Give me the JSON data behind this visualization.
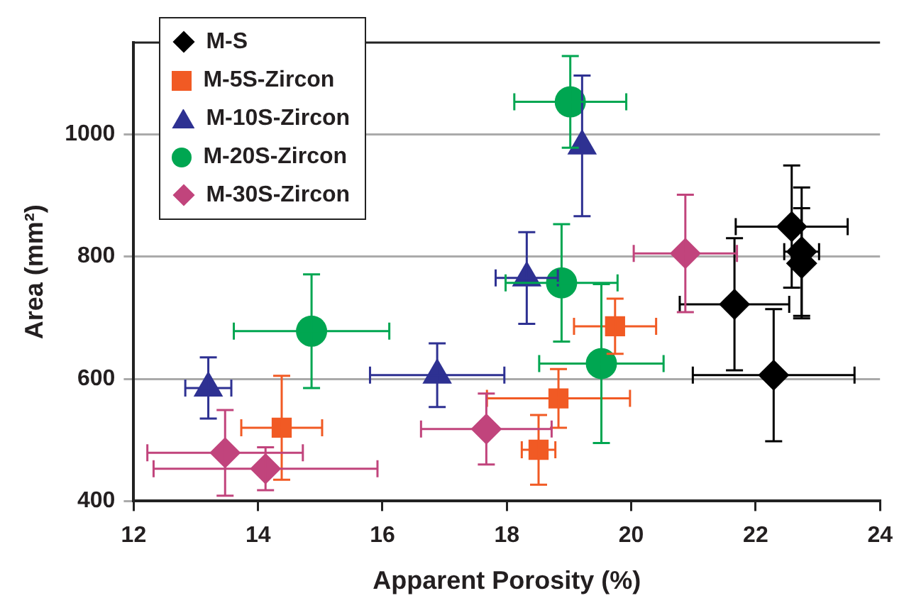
{
  "chart_data": {
    "type": "scatter",
    "xlabel": "Apparent Porosity (%)",
    "ylabel": "Area (mm²)",
    "xlim": [
      12,
      24
    ],
    "xticks": [
      12,
      14,
      16,
      18,
      20,
      22,
      24
    ],
    "ylim": [
      400,
      1150
    ],
    "yticks": [
      400,
      600,
      800,
      1000
    ],
    "grid": "y",
    "legend": "top left",
    "series": [
      {
        "name": "M-S",
        "color": "#000000",
        "marker": "diamond",
        "x": [
          22.58,
          22.74,
          22.74,
          21.66,
          22.29
        ],
        "values": [
          849,
          808,
          789,
          722,
          606
        ],
        "errors": [
          100,
          105,
          90,
          108,
          108
        ],
        "xerrors": [
          0.9,
          0.28,
          null,
          0.88,
          1.3
        ]
      },
      {
        "name": "M-5S-Zircon",
        "color": "#f15a24",
        "marker": "square",
        "x": [
          14.38,
          19.74,
          18.83,
          18.51
        ],
        "values": [
          520,
          686,
          568,
          484
        ],
        "errors": [
          85,
          45,
          48,
          57
        ],
        "xerrors": [
          0.65,
          0.66,
          1.15,
          0.27
        ]
      },
      {
        "name": "M-10S-Zircon",
        "color": "#2e3192",
        "marker": "triangle",
        "x": [
          13.2,
          16.88,
          18.32,
          19.21
        ],
        "values": [
          585,
          606,
          765,
          981
        ],
        "errors": [
          50,
          52,
          75,
          115
        ],
        "xerrors": [
          0.37,
          1.08,
          0.5,
          null
        ]
      },
      {
        "name": "M-20S-Zircon",
        "color": "#00a651",
        "marker": "circle",
        "x": [
          19.02,
          18.88,
          19.52,
          14.86
        ],
        "values": [
          1053,
          757,
          625,
          678
        ],
        "errors": [
          75,
          96,
          130,
          93
        ],
        "xerrors": [
          0.9,
          0.9,
          1.0,
          1.25
        ]
      },
      {
        "name": "M-30S-Zircon",
        "color": "#c1447c",
        "marker": "diamond",
        "x": [
          13.47,
          14.12,
          17.67,
          20.87
        ],
        "values": [
          479,
          453,
          518,
          805
        ],
        "errors": [
          70,
          35,
          58,
          96
        ],
        "xerrors": [
          1.25,
          1.8,
          1.05,
          0.83
        ]
      }
    ]
  }
}
